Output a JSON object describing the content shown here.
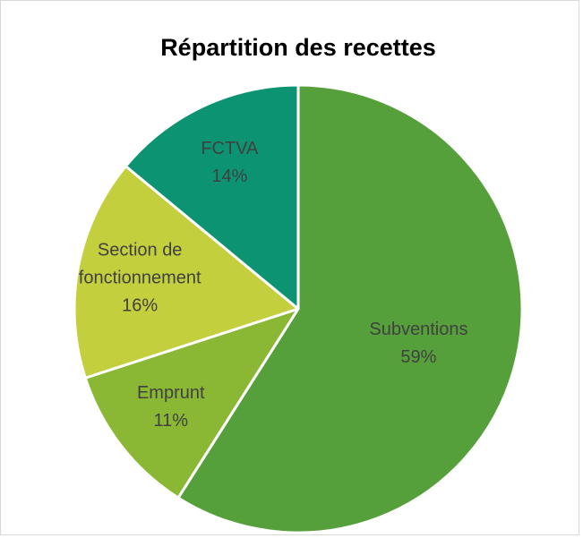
{
  "chart_data": {
    "type": "pie",
    "title": "Répartition des recettes",
    "categories": [
      "Subventions",
      "Emprunt",
      "Section de fonctionnement",
      "FCTVA"
    ],
    "values": [
      59,
      11,
      16,
      14
    ],
    "value_labels": [
      "59%",
      "11%",
      "16%",
      "14%"
    ],
    "colors": [
      "#56a03b",
      "#8bb834",
      "#c3cf3d",
      "#0c9472"
    ]
  }
}
